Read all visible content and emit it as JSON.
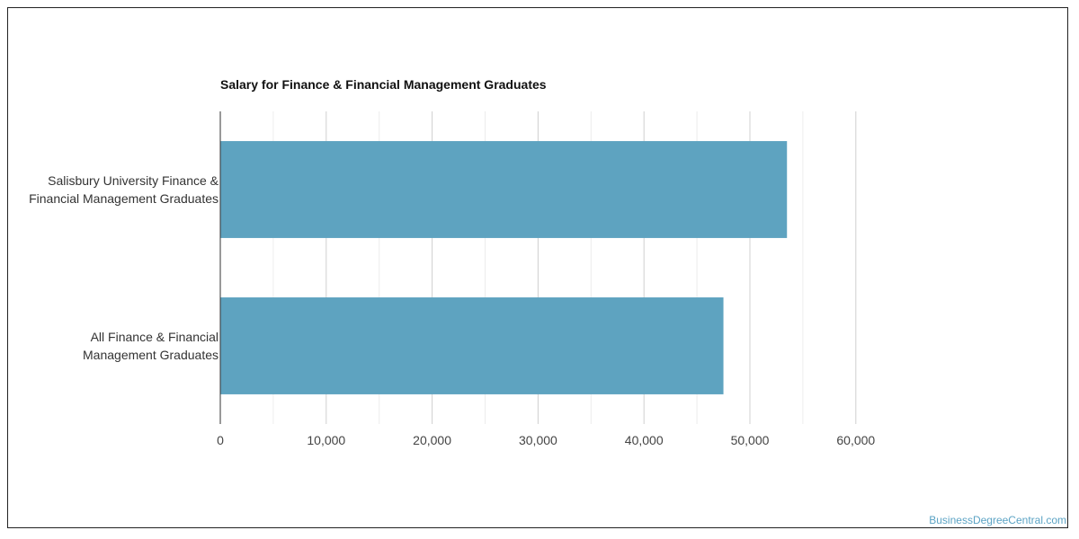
{
  "chart_data": {
    "type": "bar",
    "orientation": "horizontal",
    "title": "Salary for Finance & Financial Management Graduates",
    "categories": [
      [
        "Salisbury University Finance &",
        "Financial Management Graduates"
      ],
      [
        "All Finance & Financial",
        "Management Graduates"
      ]
    ],
    "values": [
      53500,
      47500
    ],
    "xlim": [
      0,
      60000
    ],
    "xticks": [
      0,
      10000,
      20000,
      30000,
      40000,
      50000,
      60000
    ],
    "xtick_labels": [
      "0",
      "10,000",
      "20,000",
      "30,000",
      "40,000",
      "50,000",
      "60,000"
    ],
    "grid": true,
    "bar_color": "#5ea3c0",
    "xlabel": "",
    "ylabel": ""
  },
  "credit": "BusinessDegreeCentral.com"
}
